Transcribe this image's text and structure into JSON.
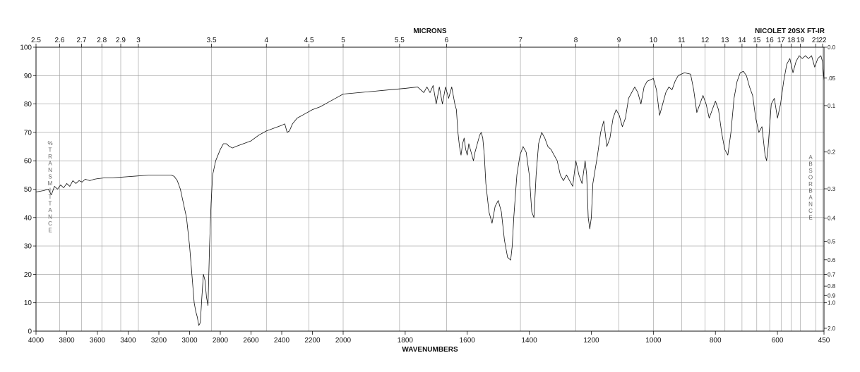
{
  "chart_data": {
    "type": "line",
    "title": "",
    "instrument_label": "NICOLET 20SX FT-IR",
    "xlabel_bottom": "WAVENUMBERS",
    "xlabel_top": "MICRONS",
    "ylabel_left": "% TRANSMITTANCE",
    "ylabel_right": "ABSORBANCE",
    "xlim": [
      4000,
      450
    ],
    "ylim": [
      0,
      100
    ],
    "grid": true,
    "bottom_ticks": [
      {
        "v": 4000,
        "label": "4000"
      },
      {
        "v": 3800,
        "label": "3800"
      },
      {
        "v": 3600,
        "label": "3600"
      },
      {
        "v": 3400,
        "label": "3400"
      },
      {
        "v": 3200,
        "label": "3200"
      },
      {
        "v": 3000,
        "label": "3000"
      },
      {
        "v": 2800,
        "label": "2800"
      },
      {
        "v": 2600,
        "label": "2600"
      },
      {
        "v": 2400,
        "label": "2400"
      },
      {
        "v": 2200,
        "label": "2200"
      },
      {
        "v": 2000,
        "label": "2000"
      },
      {
        "v": 1800,
        "label": "1800"
      },
      {
        "v": 1600,
        "label": "1600"
      },
      {
        "v": 1400,
        "label": "1400"
      },
      {
        "v": 1200,
        "label": "1200"
      },
      {
        "v": 1000,
        "label": "1000"
      },
      {
        "v": 800,
        "label": "800"
      },
      {
        "v": 600,
        "label": "600"
      },
      {
        "v": 450,
        "label": "450"
      }
    ],
    "top_ticks": [
      {
        "um": 2.5,
        "label": "2.5"
      },
      {
        "um": 2.6,
        "label": "2.6"
      },
      {
        "um": 2.7,
        "label": "2.7"
      },
      {
        "um": 2.8,
        "label": "2.8"
      },
      {
        "um": 2.9,
        "label": "2.9"
      },
      {
        "um": 3.0,
        "label": "3"
      },
      {
        "um": 3.5,
        "label": "3.5"
      },
      {
        "um": 4.0,
        "label": "4"
      },
      {
        "um": 4.5,
        "label": "4.5"
      },
      {
        "um": 5.0,
        "label": "5"
      },
      {
        "um": 5.5,
        "label": "5.5"
      },
      {
        "um": 6.0,
        "label": "6"
      },
      {
        "um": 7.0,
        "label": "7"
      },
      {
        "um": 8.0,
        "label": "8"
      },
      {
        "um": 9.0,
        "label": "9"
      },
      {
        "um": 10.0,
        "label": "10"
      },
      {
        "um": 11.0,
        "label": "11"
      },
      {
        "um": 12.0,
        "label": "12"
      },
      {
        "um": 13.0,
        "label": "13"
      },
      {
        "um": 14.0,
        "label": "14"
      },
      {
        "um": 15.0,
        "label": "15"
      },
      {
        "um": 16.0,
        "label": "16"
      },
      {
        "um": 17.0,
        "label": "17"
      },
      {
        "um": 18.0,
        "label": "18"
      },
      {
        "um": 19.0,
        "label": "19"
      },
      {
        "um": 21.0,
        "label": "21"
      },
      {
        "um": 22.0,
        "label": "22"
      }
    ],
    "left_ticks": [
      {
        "t": 100,
        "label": "100"
      },
      {
        "t": 90,
        "label": "90"
      },
      {
        "t": 80,
        "label": "80"
      },
      {
        "t": 70,
        "label": "70"
      },
      {
        "t": 60,
        "label": "60"
      },
      {
        "t": 50,
        "label": "50"
      },
      {
        "t": 40,
        "label": "40"
      },
      {
        "t": 30,
        "label": "30"
      },
      {
        "t": 20,
        "label": "20"
      },
      {
        "t": 10,
        "label": "10"
      },
      {
        "t": 0,
        "label": "0"
      }
    ],
    "right_ticks": [
      {
        "a": 0.0,
        "label": "0.0"
      },
      {
        "a": 0.05,
        "label": ".05"
      },
      {
        "a": 0.1,
        "label": "0.1"
      },
      {
        "a": 0.2,
        "label": "0.2"
      },
      {
        "a": 0.3,
        "label": "0.3"
      },
      {
        "a": 0.4,
        "label": "0.4"
      },
      {
        "a": 0.5,
        "label": "0.5"
      },
      {
        "a": 0.6,
        "label": "0.6"
      },
      {
        "a": 0.7,
        "label": "0.7"
      },
      {
        "a": 0.8,
        "label": "0.8"
      },
      {
        "a": 0.9,
        "label": "0.9"
      },
      {
        "a": 1.0,
        "label": "1.0"
      },
      {
        "a": 2.0,
        "label": "2.0"
      }
    ],
    "series": [
      {
        "color": "#111111",
        "points": [
          [
            4000,
            49
          ],
          [
            3950,
            49.5
          ],
          [
            3920,
            50
          ],
          [
            3900,
            48
          ],
          [
            3880,
            51
          ],
          [
            3860,
            50
          ],
          [
            3840,
            51.5
          ],
          [
            3820,
            50.5
          ],
          [
            3800,
            52
          ],
          [
            3780,
            51
          ],
          [
            3760,
            53
          ],
          [
            3740,
            52
          ],
          [
            3720,
            53
          ],
          [
            3700,
            52.5
          ],
          [
            3680,
            53.5
          ],
          [
            3650,
            53
          ],
          [
            3620,
            53.5
          ],
          [
            3600,
            53.7
          ],
          [
            3550,
            54
          ],
          [
            3500,
            54
          ],
          [
            3450,
            54.2
          ],
          [
            3400,
            54.4
          ],
          [
            3350,
            54.6
          ],
          [
            3300,
            54.8
          ],
          [
            3250,
            55
          ],
          [
            3200,
            55
          ],
          [
            3150,
            55
          ],
          [
            3120,
            55
          ],
          [
            3100,
            54.5
          ],
          [
            3080,
            53
          ],
          [
            3060,
            50
          ],
          [
            3040,
            45
          ],
          [
            3020,
            40
          ],
          [
            3000,
            30
          ],
          [
            2985,
            20
          ],
          [
            2970,
            10
          ],
          [
            2960,
            7
          ],
          [
            2950,
            5
          ],
          [
            2940,
            2
          ],
          [
            2930,
            3
          ],
          [
            2920,
            12
          ],
          [
            2910,
            20
          ],
          [
            2900,
            18
          ],
          [
            2890,
            12
          ],
          [
            2880,
            9
          ],
          [
            2870,
            30
          ],
          [
            2860,
            45
          ],
          [
            2850,
            55
          ],
          [
            2830,
            60
          ],
          [
            2800,
            64
          ],
          [
            2780,
            66
          ],
          [
            2760,
            66
          ],
          [
            2740,
            65
          ],
          [
            2720,
            64.5
          ],
          [
            2700,
            65
          ],
          [
            2650,
            66
          ],
          [
            2600,
            67
          ],
          [
            2550,
            69
          ],
          [
            2500,
            70.5
          ],
          [
            2450,
            71.5
          ],
          [
            2400,
            72.5
          ],
          [
            2380,
            73
          ],
          [
            2365,
            70
          ],
          [
            2350,
            70.5
          ],
          [
            2330,
            73
          ],
          [
            2300,
            75
          ],
          [
            2250,
            76.5
          ],
          [
            2200,
            78
          ],
          [
            2150,
            79
          ],
          [
            2100,
            80.5
          ],
          [
            2050,
            82
          ],
          [
            2000,
            83.5
          ],
          [
            1950,
            84
          ],
          [
            1900,
            84.5
          ],
          [
            1850,
            85
          ],
          [
            1800,
            85.5
          ],
          [
            1760,
            86
          ],
          [
            1740,
            84
          ],
          [
            1730,
            86
          ],
          [
            1720,
            84
          ],
          [
            1710,
            86.5
          ],
          [
            1700,
            80
          ],
          [
            1690,
            86
          ],
          [
            1680,
            80
          ],
          [
            1670,
            86
          ],
          [
            1660,
            82
          ],
          [
            1650,
            86
          ],
          [
            1645,
            83
          ],
          [
            1640,
            80
          ],
          [
            1635,
            78
          ],
          [
            1630,
            70
          ],
          [
            1625,
            65
          ],
          [
            1620,
            62
          ],
          [
            1615,
            66
          ],
          [
            1610,
            68
          ],
          [
            1605,
            64
          ],
          [
            1600,
            62
          ],
          [
            1595,
            66
          ],
          [
            1590,
            64
          ],
          [
            1580,
            60
          ],
          [
            1575,
            63
          ],
          [
            1570,
            65
          ],
          [
            1560,
            69
          ],
          [
            1555,
            70
          ],
          [
            1550,
            68
          ],
          [
            1545,
            62
          ],
          [
            1540,
            52
          ],
          [
            1530,
            42
          ],
          [
            1520,
            38
          ],
          [
            1510,
            44
          ],
          [
            1500,
            46
          ],
          [
            1490,
            42
          ],
          [
            1480,
            32
          ],
          [
            1470,
            26
          ],
          [
            1460,
            25
          ],
          [
            1455,
            30
          ],
          [
            1450,
            40
          ],
          [
            1440,
            55
          ],
          [
            1430,
            62
          ],
          [
            1420,
            65
          ],
          [
            1410,
            63
          ],
          [
            1400,
            55
          ],
          [
            1392,
            42
          ],
          [
            1385,
            40
          ],
          [
            1378,
            55
          ],
          [
            1370,
            66
          ],
          [
            1360,
            70
          ],
          [
            1350,
            68
          ],
          [
            1340,
            65
          ],
          [
            1330,
            64
          ],
          [
            1320,
            62
          ],
          [
            1310,
            60
          ],
          [
            1300,
            55
          ],
          [
            1290,
            53
          ],
          [
            1280,
            55
          ],
          [
            1270,
            53
          ],
          [
            1260,
            51
          ],
          [
            1250,
            60
          ],
          [
            1240,
            55
          ],
          [
            1230,
            52
          ],
          [
            1220,
            60
          ],
          [
            1215,
            55
          ],
          [
            1210,
            40
          ],
          [
            1205,
            36
          ],
          [
            1200,
            40
          ],
          [
            1195,
            52
          ],
          [
            1180,
            62
          ],
          [
            1170,
            70
          ],
          [
            1160,
            74
          ],
          [
            1150,
            65
          ],
          [
            1140,
            68
          ],
          [
            1130,
            75
          ],
          [
            1120,
            78
          ],
          [
            1110,
            76
          ],
          [
            1100,
            72
          ],
          [
            1090,
            75
          ],
          [
            1080,
            82
          ],
          [
            1070,
            84
          ],
          [
            1060,
            86
          ],
          [
            1050,
            84
          ],
          [
            1040,
            80
          ],
          [
            1030,
            86
          ],
          [
            1020,
            88
          ],
          [
            1000,
            89
          ],
          [
            990,
            85
          ],
          [
            980,
            76
          ],
          [
            970,
            80
          ],
          [
            960,
            84
          ],
          [
            950,
            86
          ],
          [
            940,
            85
          ],
          [
            930,
            88
          ],
          [
            920,
            90
          ],
          [
            900,
            91
          ],
          [
            880,
            90.5
          ],
          [
            870,
            85
          ],
          [
            860,
            77
          ],
          [
            850,
            80
          ],
          [
            840,
            83
          ],
          [
            830,
            80
          ],
          [
            820,
            75
          ],
          [
            810,
            78
          ],
          [
            800,
            81
          ],
          [
            790,
            78
          ],
          [
            780,
            70
          ],
          [
            770,
            64
          ],
          [
            760,
            62
          ],
          [
            750,
            70
          ],
          [
            740,
            82
          ],
          [
            730,
            88
          ],
          [
            720,
            91
          ],
          [
            710,
            91.5
          ],
          [
            700,
            90
          ],
          [
            690,
            86
          ],
          [
            680,
            83
          ],
          [
            670,
            75
          ],
          [
            660,
            70
          ],
          [
            650,
            72
          ],
          [
            640,
            62
          ],
          [
            635,
            60
          ],
          [
            630,
            65
          ],
          [
            620,
            80
          ],
          [
            610,
            82
          ],
          [
            600,
            75
          ],
          [
            590,
            80
          ],
          [
            580,
            88
          ],
          [
            570,
            94
          ],
          [
            560,
            96
          ],
          [
            550,
            91
          ],
          [
            540,
            95
          ],
          [
            530,
            97
          ],
          [
            520,
            96
          ],
          [
            510,
            97
          ],
          [
            500,
            96
          ],
          [
            490,
            97
          ],
          [
            480,
            93
          ],
          [
            470,
            96
          ],
          [
            460,
            97
          ],
          [
            455,
            95
          ],
          [
            450,
            88
          ]
        ]
      }
    ]
  }
}
